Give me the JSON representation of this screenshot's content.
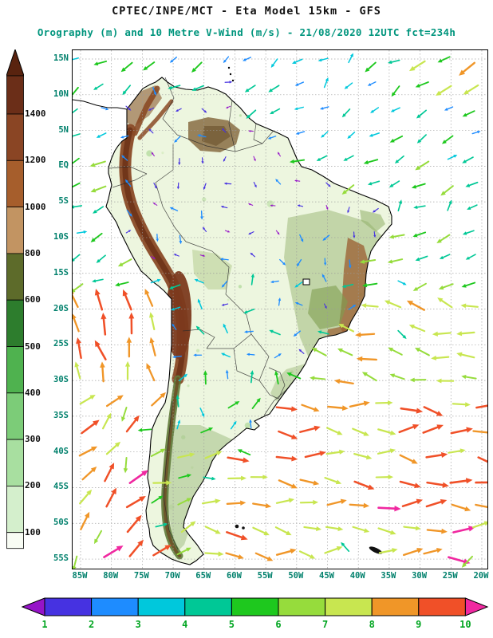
{
  "header": {
    "title": "CPTEC/INPE/MCT -  Eta Model 15km - GFS",
    "subtitle": "Orography (m) and 10 Metre V-Wind (m/s) - 21/08/2020 12UTC fct=234h"
  },
  "colors": {
    "subtitle_color": "#00957d",
    "axis_label_color": "#00806c",
    "wind_label_color": "#00a520",
    "orography_label_color": "#111111",
    "grid_color": "#999999",
    "coastline_color": "#000000"
  },
  "chart_data": {
    "type": "map-vector-field",
    "region": "South America",
    "model": "Eta Model 15km",
    "boundary_conditions": "GFS",
    "valid": "21/08/2020 12UTC",
    "forecast": "fct=234h",
    "fields": [
      "Orography (m) shaded",
      "10 Metre V-Wind (m/s) colored vectors"
    ],
    "lat_ticks": [
      "15N",
      "10N",
      "5N",
      "EQ",
      "5S",
      "10S",
      "15S",
      "20S",
      "25S",
      "30S",
      "35S",
      "40S",
      "45S",
      "50S",
      "55S"
    ],
    "lon_ticks": [
      "85W",
      "80W",
      "75W",
      "70W",
      "65W",
      "60W",
      "55W",
      "50W",
      "45W",
      "40W",
      "35W",
      "30W",
      "25W",
      "20W"
    ],
    "orography_scale": {
      "units": "m",
      "ticks": [
        100,
        200,
        300,
        400,
        500,
        600,
        800,
        1000,
        1200,
        1400
      ],
      "colors_bottom_to_top": [
        "#f8fcf4",
        "#d4efcc",
        "#a8dfa0",
        "#7ccc78",
        "#4fb24f",
        "#2d7d2d",
        "#5d6b2a",
        "#c29462",
        "#a65e2c",
        "#8a4524",
        "#6b2e18"
      ],
      "arrow_color": "#59230f"
    },
    "wind_scale": {
      "units": "m/s",
      "ticks": [
        1,
        2,
        3,
        4,
        5,
        6,
        7,
        8,
        9,
        10
      ],
      "colors": [
        "#9614c8",
        "#4632e1",
        "#1e8cff",
        "#00c8dc",
        "#00c896",
        "#1ec81e",
        "#96dc3c",
        "#c8e650",
        "#f09628",
        "#f05028",
        "#f028a0"
      ]
    },
    "wind_field_note": "Vector arrows over map; arrow color maps wind speed (m/s) to wind_scale colors; strongest (magenta/red) vectors over the southern oceans, weak (purple/blue) vectors near the equator over the continent."
  }
}
